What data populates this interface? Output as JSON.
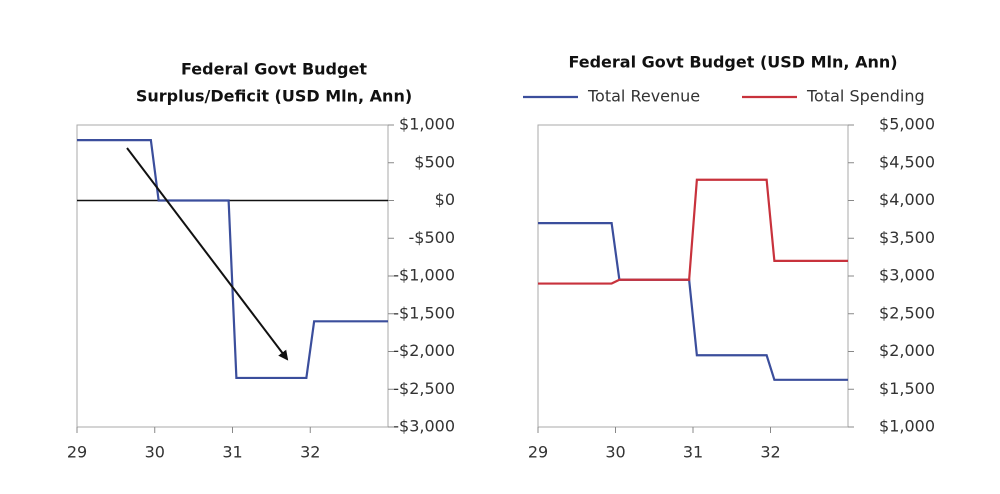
{
  "chart_data": [
    {
      "type": "line",
      "title": "Federal Govt Budget",
      "subtitle": "Surplus/Deficit (USD Mln, Ann)",
      "x": [
        29,
        29.95,
        30.05,
        30.95,
        31.05,
        31.95,
        32.05,
        33
      ],
      "series": [
        {
          "color": "#3b4e9c",
          "values": [
            800,
            800,
            0,
            0,
            -2350,
            -2350,
            -1600,
            -1600
          ]
        }
      ],
      "xlim": [
        29,
        33
      ],
      "xticks": [
        29,
        30,
        31,
        32
      ],
      "ylim": [
        -3000,
        1000
      ],
      "yticks": [
        {
          "value": 1000,
          "label": "$1,000"
        },
        {
          "value": 500,
          "label": "$500"
        },
        {
          "value": 0,
          "label": "$0"
        },
        {
          "value": -500,
          "label": "-$500"
        },
        {
          "value": -1000,
          "label": "-$1,000"
        },
        {
          "value": -1500,
          "label": "-$1,500"
        },
        {
          "value": -2000,
          "label": "-$2,000"
        },
        {
          "value": -2500,
          "label": "-$2,500"
        },
        {
          "value": -3000,
          "label": "-$3,000"
        }
      ],
      "zero_line": true
    },
    {
      "type": "line",
      "title": "Federal Govt Budget (USD Mln, Ann)",
      "x": [
        29,
        29.95,
        30.05,
        30.95,
        31.05,
        31.95,
        32.05,
        33
      ],
      "series": [
        {
          "name": "Total Revenue",
          "color": "#3b4e9c",
          "values": [
            3700,
            3700,
            2950,
            2950,
            1950,
            1950,
            1625,
            1625
          ]
        },
        {
          "name": "Total Spending",
          "color": "#c8323c",
          "values": [
            2900,
            2900,
            2950,
            2950,
            4275,
            4275,
            3200,
            3200
          ]
        }
      ],
      "xlim": [
        29,
        33
      ],
      "xticks": [
        29,
        30,
        31,
        32
      ],
      "ylim": [
        1000,
        5000
      ],
      "yticks": [
        {
          "value": 5000,
          "label": "$5,000"
        },
        {
          "value": 4500,
          "label": "$4,500"
        },
        {
          "value": 4000,
          "label": "$4,000"
        },
        {
          "value": 3500,
          "label": "$3,500"
        },
        {
          "value": 3000,
          "label": "$3,000"
        },
        {
          "value": 2500,
          "label": "$2,500"
        },
        {
          "value": 2000,
          "label": "$2,000"
        },
        {
          "value": 1500,
          "label": "$1,500"
        },
        {
          "value": 1000,
          "label": "$1,000"
        }
      ],
      "zero_line": false
    }
  ]
}
